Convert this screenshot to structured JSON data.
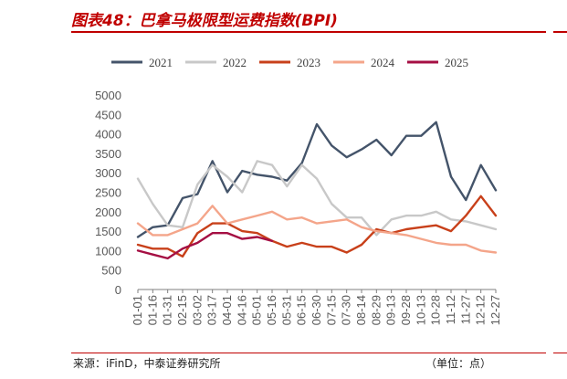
{
  "header": {
    "title": "图表48：巴拿马极限型运费指数(BPI)"
  },
  "footer": {
    "source": "来源：iFinD，中泰证券研究所",
    "unit": "（单位：点）"
  },
  "chart_data": {
    "type": "line",
    "x": [
      "01-01",
      "01-16",
      "01-31",
      "02-15",
      "03-02",
      "03-17",
      "04-01",
      "04-16",
      "05-01",
      "05-16",
      "05-31",
      "06-15",
      "06-30",
      "07-15",
      "07-30",
      "08-14",
      "08-29",
      "09-13",
      "09-28",
      "10-13",
      "10-28",
      "11-12",
      "11-27",
      "12-12",
      "12-27"
    ],
    "ylim": [
      0,
      5000
    ],
    "yticks": [
      0,
      500,
      1000,
      1500,
      2000,
      2500,
      3000,
      3500,
      4000,
      4500,
      5000
    ],
    "legend_position": "top",
    "grid": false,
    "series": [
      {
        "name": "2021",
        "color": "#44546a",
        "values": [
          1350,
          1600,
          1650,
          2350,
          2450,
          3300,
          2500,
          3050,
          2950,
          2900,
          2800,
          3250,
          4250,
          3700,
          3400,
          3600,
          3850,
          3450,
          3950,
          3950,
          4300,
          2900,
          2300,
          3200,
          2550
        ]
      },
      {
        "name": "2022",
        "color": "#c8c8c8",
        "values": [
          2850,
          2200,
          1650,
          1600,
          2700,
          3200,
          2900,
          2500,
          3300,
          3200,
          2650,
          3200,
          2850,
          2200,
          1850,
          1850,
          1400,
          1800,
          1900,
          1900,
          2000,
          1800,
          1750,
          1650,
          1550
        ]
      },
      {
        "name": "2023",
        "color": "#c8401a",
        "values": [
          1150,
          1050,
          1050,
          850,
          1450,
          1700,
          1700,
          1500,
          1450,
          1250,
          1100,
          1200,
          1100,
          1100,
          950,
          1150,
          1550,
          1450,
          1550,
          1600,
          1650,
          1500,
          1900,
          2400,
          1900
        ]
      },
      {
        "name": "2024",
        "color": "#f4a58a",
        "values": [
          1700,
          1400,
          1400,
          1550,
          1700,
          2150,
          1700,
          1800,
          1900,
          2000,
          1800,
          1850,
          1700,
          1750,
          1800,
          1600,
          1500,
          1450,
          1400,
          1300,
          1200,
          1150,
          1150,
          1000,
          950
        ]
      },
      {
        "name": "2025",
        "color": "#a50f43",
        "values": [
          1000,
          900,
          800,
          1050,
          1200,
          1450,
          1450,
          1300,
          1350,
          1250,
          null,
          null,
          null,
          null,
          null,
          null,
          null,
          null,
          null,
          null,
          null,
          null,
          null,
          null,
          null
        ]
      }
    ]
  }
}
